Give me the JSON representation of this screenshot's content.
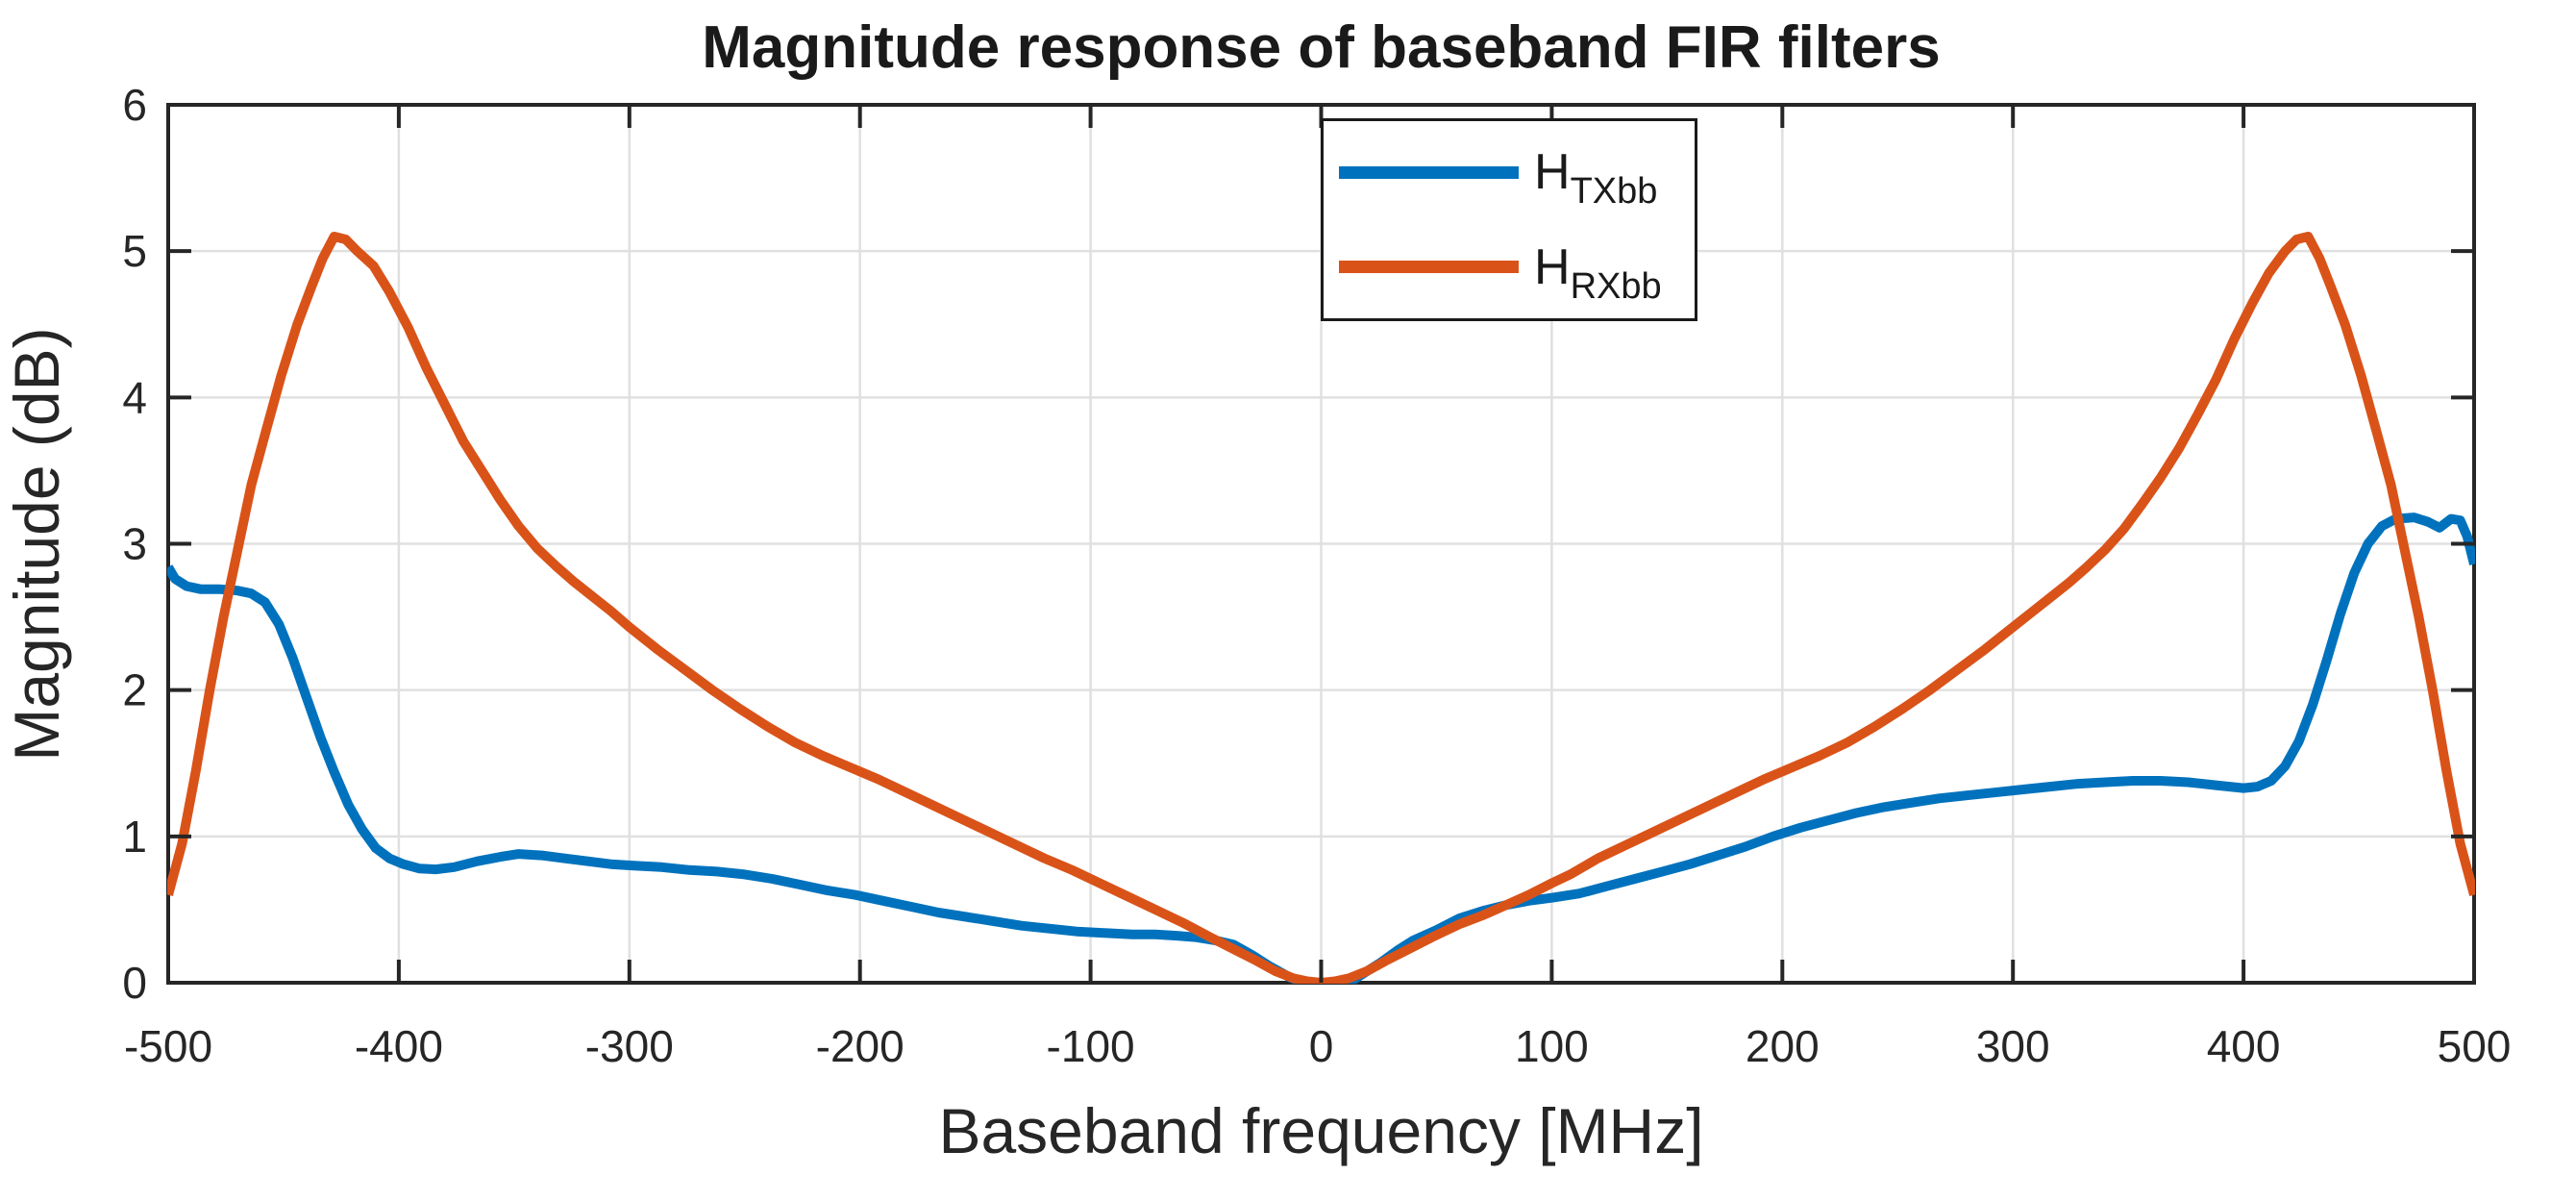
{
  "chart_data": {
    "type": "line",
    "title": "Magnitude response of baseband FIR filters",
    "xlabel": "Baseband frequency [MHz]",
    "ylabel": "Magnitude (dB)",
    "xlim": [
      -500,
      500
    ],
    "ylim": [
      0,
      6
    ],
    "xticks": [
      -500,
      -400,
      -300,
      -200,
      -100,
      0,
      100,
      200,
      300,
      400,
      500
    ],
    "yticks": [
      0,
      1,
      2,
      3,
      4,
      5,
      6
    ],
    "grid": true,
    "legend_position": "top-center",
    "colors": {
      "axis": "#262626",
      "grid": "#e0e0e0",
      "tx_blue": "#0072BD",
      "rx_orange": "#D95319"
    },
    "series": [
      {
        "name": "H_TXbb",
        "label_base": "H",
        "label_sub": "TXbb",
        "color": "#0072BD",
        "points": [
          [
            -500,
            2.84
          ],
          [
            -497,
            2.76
          ],
          [
            -492,
            2.71
          ],
          [
            -486,
            2.69
          ],
          [
            -478,
            2.69
          ],
          [
            -470,
            2.68
          ],
          [
            -464,
            2.66
          ],
          [
            -458,
            2.6
          ],
          [
            -452,
            2.45
          ],
          [
            -446,
            2.22
          ],
          [
            -440,
            1.95
          ],
          [
            -434,
            1.68
          ],
          [
            -428,
            1.44
          ],
          [
            -422,
            1.22
          ],
          [
            -416,
            1.05
          ],
          [
            -410,
            0.92
          ],
          [
            -404,
            0.85
          ],
          [
            -398,
            0.81
          ],
          [
            -391,
            0.78
          ],
          [
            -384,
            0.775
          ],
          [
            -376,
            0.79
          ],
          [
            -366,
            0.83
          ],
          [
            -356,
            0.86
          ],
          [
            -348,
            0.88
          ],
          [
            -338,
            0.87
          ],
          [
            -328,
            0.85
          ],
          [
            -318,
            0.83
          ],
          [
            -308,
            0.81
          ],
          [
            -298,
            0.8
          ],
          [
            -286,
            0.79
          ],
          [
            -274,
            0.77
          ],
          [
            -262,
            0.76
          ],
          [
            -250,
            0.74
          ],
          [
            -238,
            0.71
          ],
          [
            -226,
            0.67
          ],
          [
            -214,
            0.63
          ],
          [
            -202,
            0.6
          ],
          [
            -190,
            0.56
          ],
          [
            -178,
            0.52
          ],
          [
            -166,
            0.48
          ],
          [
            -154,
            0.45
          ],
          [
            -142,
            0.42
          ],
          [
            -130,
            0.39
          ],
          [
            -118,
            0.37
          ],
          [
            -106,
            0.35
          ],
          [
            -94,
            0.34
          ],
          [
            -82,
            0.33
          ],
          [
            -72,
            0.33
          ],
          [
            -62,
            0.32
          ],
          [
            -54,
            0.31
          ],
          [
            -46,
            0.29
          ],
          [
            -38,
            0.26
          ],
          [
            -30,
            0.19
          ],
          [
            -22,
            0.11
          ],
          [
            -14,
            0.04
          ],
          [
            -8,
            0
          ],
          [
            -4,
            -0.02
          ],
          [
            0,
            -0.06
          ],
          [
            4,
            -0.02
          ],
          [
            8,
            0
          ],
          [
            14,
            0.02
          ],
          [
            20,
            0.08
          ],
          [
            26,
            0.14
          ],
          [
            33,
            0.22
          ],
          [
            40,
            0.29
          ],
          [
            50,
            0.36
          ],
          [
            60,
            0.44
          ],
          [
            70,
            0.49
          ],
          [
            80,
            0.53
          ],
          [
            90,
            0.56
          ],
          [
            100,
            0.58
          ],
          [
            112,
            0.61
          ],
          [
            124,
            0.66
          ],
          [
            136,
            0.71
          ],
          [
            148,
            0.76
          ],
          [
            160,
            0.81
          ],
          [
            172,
            0.87
          ],
          [
            184,
            0.93
          ],
          [
            196,
            1.0
          ],
          [
            208,
            1.06
          ],
          [
            220,
            1.11
          ],
          [
            232,
            1.16
          ],
          [
            244,
            1.2
          ],
          [
            256,
            1.23
          ],
          [
            268,
            1.26
          ],
          [
            280,
            1.28
          ],
          [
            292,
            1.3
          ],
          [
            304,
            1.32
          ],
          [
            316,
            1.34
          ],
          [
            328,
            1.36
          ],
          [
            340,
            1.37
          ],
          [
            352,
            1.38
          ],
          [
            364,
            1.38
          ],
          [
            376,
            1.37
          ],
          [
            388,
            1.35
          ],
          [
            400,
            1.33
          ],
          [
            406,
            1.34
          ],
          [
            412,
            1.38
          ],
          [
            418,
            1.48
          ],
          [
            424,
            1.65
          ],
          [
            430,
            1.9
          ],
          [
            436,
            2.2
          ],
          [
            442,
            2.52
          ],
          [
            448,
            2.8
          ],
          [
            454,
            3.0
          ],
          [
            460,
            3.12
          ],
          [
            466,
            3.17
          ],
          [
            474,
            3.18
          ],
          [
            480,
            3.15
          ],
          [
            485,
            3.11
          ],
          [
            490,
            3.17
          ],
          [
            494,
            3.16
          ],
          [
            497,
            3.05
          ],
          [
            500,
            2.86
          ]
        ]
      },
      {
        "name": "H_RXbb",
        "label_base": "H",
        "label_sub": "RXbb",
        "color": "#D95319",
        "points": [
          [
            -500,
            0.6
          ],
          [
            -494,
            0.95
          ],
          [
            -488,
            1.45
          ],
          [
            -482,
            2.0
          ],
          [
            -476,
            2.5
          ],
          [
            -470,
            2.95
          ],
          [
            -464,
            3.4
          ],
          [
            -458,
            3.75
          ],
          [
            -451,
            4.15
          ],
          [
            -444,
            4.5
          ],
          [
            -438,
            4.75
          ],
          [
            -433,
            4.95
          ],
          [
            -428,
            5.1
          ],
          [
            -423,
            5.08
          ],
          [
            -418,
            5.0
          ],
          [
            -411,
            4.9
          ],
          [
            -404,
            4.72
          ],
          [
            -396,
            4.48
          ],
          [
            -388,
            4.2
          ],
          [
            -380,
            3.95
          ],
          [
            -372,
            3.7
          ],
          [
            -364,
            3.5
          ],
          [
            -356,
            3.3
          ],
          [
            -348,
            3.12
          ],
          [
            -340,
            2.97
          ],
          [
            -332,
            2.85
          ],
          [
            -324,
            2.74
          ],
          [
            -316,
            2.64
          ],
          [
            -308,
            2.54
          ],
          [
            -300,
            2.43
          ],
          [
            -288,
            2.28
          ],
          [
            -276,
            2.14
          ],
          [
            -264,
            2.0
          ],
          [
            -252,
            1.87
          ],
          [
            -240,
            1.75
          ],
          [
            -228,
            1.64
          ],
          [
            -216,
            1.55
          ],
          [
            -204,
            1.47
          ],
          [
            -192,
            1.39
          ],
          [
            -180,
            1.3
          ],
          [
            -168,
            1.21
          ],
          [
            -156,
            1.12
          ],
          [
            -144,
            1.03
          ],
          [
            -132,
            0.94
          ],
          [
            -120,
            0.85
          ],
          [
            -108,
            0.77
          ],
          [
            -96,
            0.68
          ],
          [
            -84,
            0.59
          ],
          [
            -72,
            0.5
          ],
          [
            -60,
            0.41
          ],
          [
            -48,
            0.31
          ],
          [
            -38,
            0.23
          ],
          [
            -28,
            0.15
          ],
          [
            -20,
            0.08
          ],
          [
            -12,
            0.03
          ],
          [
            -6,
            0.01
          ],
          [
            0,
            0
          ],
          [
            6,
            0.01
          ],
          [
            12,
            0.03
          ],
          [
            20,
            0.08
          ],
          [
            28,
            0.15
          ],
          [
            38,
            0.23
          ],
          [
            48,
            0.31
          ],
          [
            60,
            0.4
          ],
          [
            70,
            0.46
          ],
          [
            80,
            0.53
          ],
          [
            90,
            0.6
          ],
          [
            100,
            0.68
          ],
          [
            108,
            0.74
          ],
          [
            120,
            0.85
          ],
          [
            132,
            0.94
          ],
          [
            144,
            1.03
          ],
          [
            156,
            1.12
          ],
          [
            168,
            1.21
          ],
          [
            180,
            1.3
          ],
          [
            192,
            1.39
          ],
          [
            204,
            1.47
          ],
          [
            216,
            1.55
          ],
          [
            228,
            1.64
          ],
          [
            240,
            1.75
          ],
          [
            252,
            1.87
          ],
          [
            264,
            2.0
          ],
          [
            276,
            2.14
          ],
          [
            288,
            2.28
          ],
          [
            300,
            2.43
          ],
          [
            308,
            2.53
          ],
          [
            316,
            2.63
          ],
          [
            324,
            2.73
          ],
          [
            332,
            2.84
          ],
          [
            340,
            2.96
          ],
          [
            348,
            3.1
          ],
          [
            356,
            3.27
          ],
          [
            364,
            3.45
          ],
          [
            372,
            3.65
          ],
          [
            380,
            3.88
          ],
          [
            388,
            4.12
          ],
          [
            396,
            4.4
          ],
          [
            404,
            4.65
          ],
          [
            411,
            4.85
          ],
          [
            418,
            5.0
          ],
          [
            423,
            5.08
          ],
          [
            428,
            5.1
          ],
          [
            433,
            4.95
          ],
          [
            438,
            4.75
          ],
          [
            444,
            4.5
          ],
          [
            451,
            4.15
          ],
          [
            458,
            3.75
          ],
          [
            464,
            3.4
          ],
          [
            470,
            2.95
          ],
          [
            476,
            2.5
          ],
          [
            482,
            2.0
          ],
          [
            488,
            1.45
          ],
          [
            494,
            0.95
          ],
          [
            500,
            0.6
          ]
        ]
      }
    ]
  }
}
